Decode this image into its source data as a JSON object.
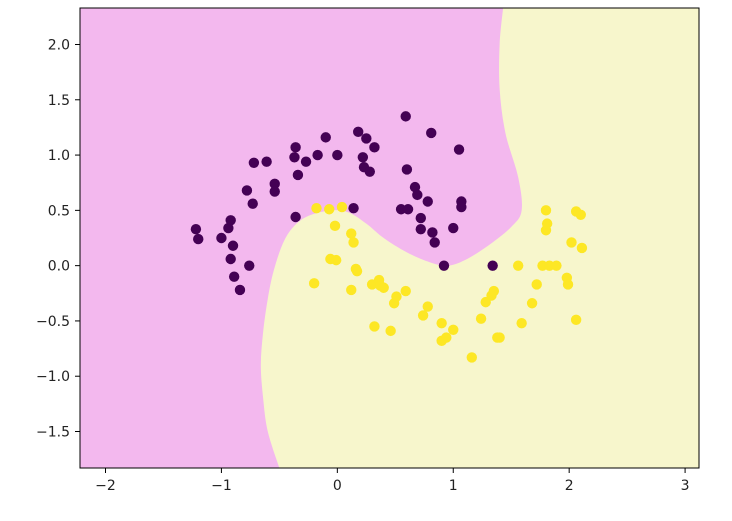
{
  "chart_data": {
    "type": "scatter",
    "title": "",
    "xlabel": "",
    "ylabel": "",
    "xlim": [
      -2.22,
      3.12
    ],
    "ylim": [
      -1.83,
      2.33
    ],
    "grid": false,
    "legend": "none",
    "x_ticks": [
      -2,
      -1,
      0,
      1,
      2,
      3
    ],
    "x_tick_labels": [
      "−2",
      "−1",
      "0",
      "1",
      "2",
      "3"
    ],
    "y_ticks": [
      -1.5,
      -1.0,
      -0.5,
      0.0,
      0.5,
      1.0,
      1.5,
      2.0
    ],
    "y_tick_labels": [
      "−1.5",
      "−1.0",
      "−0.5",
      "0.0",
      "0.5",
      "1.0",
      "1.5",
      "2.0"
    ],
    "decision_regions": {
      "class_0_color": "#f3b8ee",
      "class_1_color": "#f7f6cc",
      "boundary_class_1_side": [
        [
          -0.5,
          -1.83
        ],
        [
          -0.6,
          -1.5
        ],
        [
          -0.64,
          -1.2
        ],
        [
          -0.66,
          -0.9
        ],
        [
          -0.64,
          -0.6
        ],
        [
          -0.6,
          -0.3
        ],
        [
          -0.55,
          -0.05
        ],
        [
          -0.47,
          0.2
        ],
        [
          -0.38,
          0.35
        ],
        [
          -0.25,
          0.45
        ],
        [
          -0.05,
          0.5
        ],
        [
          0.1,
          0.48
        ],
        [
          0.25,
          0.38
        ],
        [
          0.4,
          0.25
        ],
        [
          0.6,
          0.12
        ],
        [
          0.8,
          0.03
        ],
        [
          0.95,
          0.0
        ],
        [
          1.1,
          0.05
        ],
        [
          1.3,
          0.18
        ],
        [
          1.5,
          0.35
        ],
        [
          1.59,
          0.5
        ],
        [
          1.56,
          0.8
        ],
        [
          1.45,
          1.2
        ],
        [
          1.4,
          1.6
        ],
        [
          1.4,
          2.0
        ],
        [
          1.43,
          2.33
        ]
      ]
    },
    "series": [
      {
        "color": "#440154",
        "points": [
          [
            -1.22,
            0.33
          ],
          [
            -1.2,
            0.24
          ],
          [
            -1.0,
            0.25
          ],
          [
            -0.94,
            0.34
          ],
          [
            -0.92,
            0.41
          ],
          [
            -0.9,
            0.18
          ],
          [
            -0.92,
            0.06
          ],
          [
            -0.89,
            -0.1
          ],
          [
            -0.84,
            -0.22
          ],
          [
            -0.76,
            0.0
          ],
          [
            -0.78,
            0.68
          ],
          [
            -0.73,
            0.56
          ],
          [
            -0.72,
            0.93
          ],
          [
            -0.61,
            0.94
          ],
          [
            -0.54,
            0.74
          ],
          [
            -0.54,
            0.67
          ],
          [
            -0.37,
            0.98
          ],
          [
            -0.36,
            1.07
          ],
          [
            -0.34,
            0.82
          ],
          [
            -0.27,
            0.94
          ],
          [
            -0.17,
            1.0
          ],
          [
            -0.1,
            1.16
          ],
          [
            0.0,
            1.0
          ],
          [
            0.18,
            1.21
          ],
          [
            0.22,
            0.98
          ],
          [
            0.25,
            1.15
          ],
          [
            0.23,
            0.89
          ],
          [
            0.28,
            0.85
          ],
          [
            0.32,
            1.07
          ],
          [
            0.59,
            1.35
          ],
          [
            0.6,
            0.87
          ],
          [
            0.67,
            0.71
          ],
          [
            0.69,
            0.64
          ],
          [
            0.72,
            0.43
          ],
          [
            0.78,
            0.58
          ],
          [
            0.81,
            1.2
          ],
          [
            0.72,
            0.33
          ],
          [
            0.82,
            0.3
          ],
          [
            0.84,
            0.21
          ],
          [
            0.55,
            0.51
          ],
          [
            0.61,
            0.51
          ],
          [
            1.0,
            0.34
          ],
          [
            1.05,
            1.05
          ],
          [
            1.07,
            0.58
          ],
          [
            1.07,
            0.53
          ],
          [
            0.92,
            0.0
          ],
          [
            1.34,
            0.0
          ],
          [
            -0.36,
            0.44
          ],
          [
            0.14,
            0.52
          ]
        ]
      },
      {
        "color": "#fde725",
        "points": [
          [
            -0.18,
            0.52
          ],
          [
            -0.07,
            0.51
          ],
          [
            0.04,
            0.53
          ],
          [
            -0.02,
            0.36
          ],
          [
            0.12,
            0.29
          ],
          [
            0.14,
            0.21
          ],
          [
            -0.06,
            0.06
          ],
          [
            -0.01,
            0.05
          ],
          [
            0.16,
            -0.03
          ],
          [
            0.17,
            -0.05
          ],
          [
            -0.2,
            -0.16
          ],
          [
            0.12,
            -0.22
          ],
          [
            0.3,
            -0.17
          ],
          [
            0.36,
            -0.13
          ],
          [
            0.37,
            -0.18
          ],
          [
            0.4,
            -0.2
          ],
          [
            0.49,
            -0.34
          ],
          [
            0.51,
            -0.28
          ],
          [
            0.59,
            -0.23
          ],
          [
            0.32,
            -0.55
          ],
          [
            0.46,
            -0.59
          ],
          [
            0.74,
            -0.45
          ],
          [
            0.78,
            -0.37
          ],
          [
            0.9,
            -0.52
          ],
          [
            0.9,
            -0.68
          ],
          [
            0.94,
            -0.65
          ],
          [
            1.0,
            -0.58
          ],
          [
            1.16,
            -0.83
          ],
          [
            1.24,
            -0.48
          ],
          [
            1.28,
            -0.33
          ],
          [
            1.33,
            -0.27
          ],
          [
            1.35,
            -0.23
          ],
          [
            1.38,
            -0.65
          ],
          [
            1.4,
            -0.65
          ],
          [
            1.56,
            0.0
          ],
          [
            1.59,
            -0.52
          ],
          [
            1.68,
            -0.34
          ],
          [
            1.72,
            -0.17
          ],
          [
            1.77,
            0.0
          ],
          [
            1.83,
            0.0
          ],
          [
            1.8,
            0.32
          ],
          [
            1.81,
            0.38
          ],
          [
            1.8,
            0.5
          ],
          [
            1.89,
            0.0
          ],
          [
            1.98,
            -0.11
          ],
          [
            1.99,
            -0.17
          ],
          [
            2.02,
            0.21
          ],
          [
            2.06,
            0.49
          ],
          [
            2.1,
            0.46
          ],
          [
            2.11,
            0.16
          ],
          [
            2.06,
            -0.49
          ]
        ]
      }
    ]
  }
}
